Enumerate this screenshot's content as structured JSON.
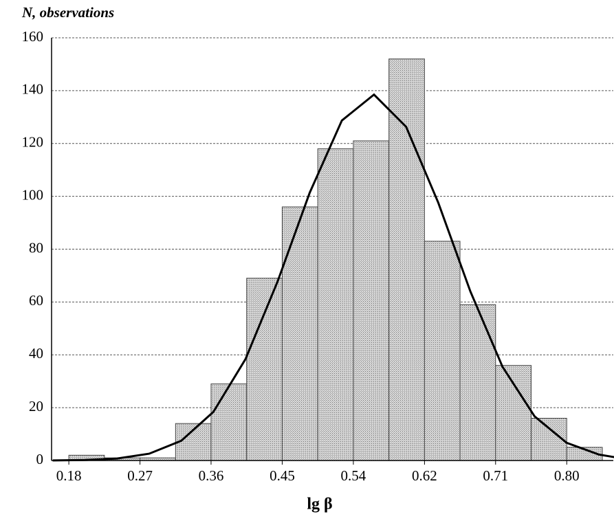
{
  "chart_data": {
    "type": "histogram",
    "title": "N, observations",
    "x_label": "lg β",
    "bins": [
      0.18,
      0.2243,
      0.2686,
      0.3129,
      0.3571,
      0.4014,
      0.4457,
      0.49,
      0.5343,
      0.5786,
      0.6229,
      0.6671,
      0.7114,
      0.7557,
      0.8,
      0.8443
    ],
    "values": [
      2,
      1,
      1,
      14,
      29,
      69,
      96,
      118,
      121,
      152,
      83,
      59,
      36,
      16,
      5
    ],
    "color": "#c4c4c4",
    "curve": {
      "color": "#000000",
      "x": [
        0.16,
        0.2,
        0.24,
        0.28,
        0.32,
        0.36,
        0.4,
        0.44,
        0.48,
        0.52,
        0.56,
        0.6,
        0.64,
        0.68,
        0.72,
        0.76,
        0.8,
        0.84,
        0.86
      ],
      "values": [
        0.04,
        0.19,
        0.75,
        2.58,
        7.48,
        18.4,
        38.4,
        67.8,
        101.4,
        128.7,
        138.5,
        126.3,
        97.6,
        64.0,
        35.5,
        16.7,
        6.68,
        2.26,
        1.24
      ]
    },
    "xlim": [
      0.1585,
      0.858
    ],
    "ylim": [
      0,
      160
    ],
    "xticks": [
      {
        "value": 0.18,
        "label": "0.18"
      },
      {
        "value": 0.2686,
        "label": "0.27"
      },
      {
        "value": 0.3571,
        "label": "0.36"
      },
      {
        "value": 0.4457,
        "label": "0.45"
      },
      {
        "value": 0.5343,
        "label": "0.54"
      },
      {
        "value": 0.6229,
        "label": "0.62"
      },
      {
        "value": 0.7114,
        "label": "0.71"
      },
      {
        "value": 0.8,
        "label": "0.80"
      }
    ],
    "yticks": [
      0,
      20,
      40,
      60,
      80,
      100,
      120,
      140,
      160
    ],
    "grid": true
  }
}
